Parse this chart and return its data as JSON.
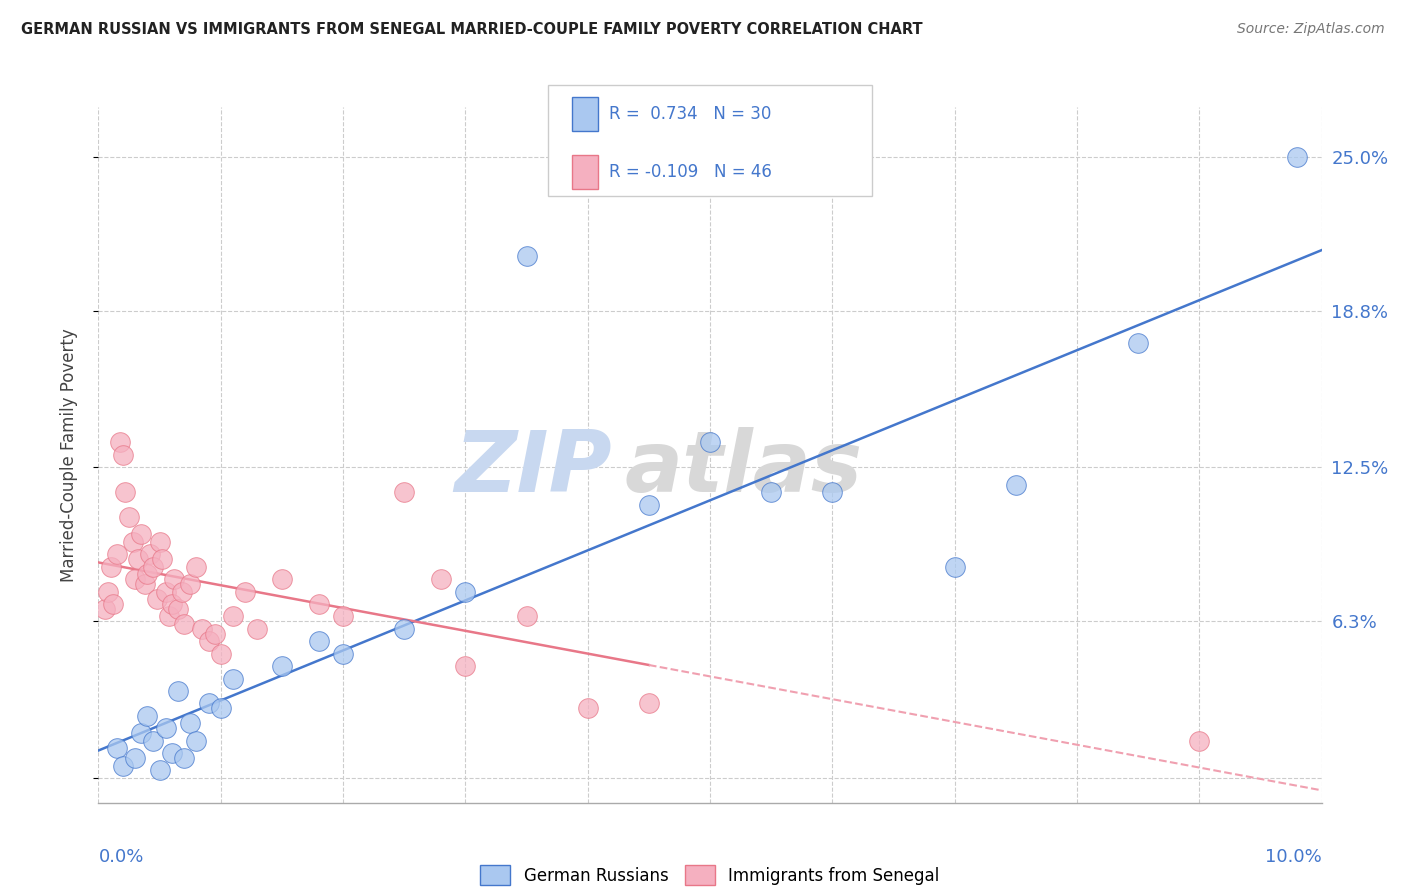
{
  "title": "GERMAN RUSSIAN VS IMMIGRANTS FROM SENEGAL MARRIED-COUPLE FAMILY POVERTY CORRELATION CHART",
  "source": "Source: ZipAtlas.com",
  "ylabel": "Married-Couple Family Poverty",
  "watermark_zip": "ZIP",
  "watermark_atlas": "atlas",
  "xlim": [
    0.0,
    10.0
  ],
  "ylim": [
    -1.0,
    27.0
  ],
  "yticks": [
    0.0,
    6.3,
    12.5,
    18.8,
    25.0
  ],
  "ytick_labels": [
    "",
    "6.3%",
    "12.5%",
    "18.8%",
    "25.0%"
  ],
  "legend": {
    "blue_R": "0.734",
    "blue_N": "30",
    "pink_R": "-0.109",
    "pink_N": "46"
  },
  "blue_scatter": [
    [
      0.15,
      1.2
    ],
    [
      0.2,
      0.5
    ],
    [
      0.3,
      0.8
    ],
    [
      0.35,
      1.8
    ],
    [
      0.4,
      2.5
    ],
    [
      0.45,
      1.5
    ],
    [
      0.5,
      0.3
    ],
    [
      0.55,
      2.0
    ],
    [
      0.6,
      1.0
    ],
    [
      0.65,
      3.5
    ],
    [
      0.7,
      0.8
    ],
    [
      0.75,
      2.2
    ],
    [
      0.8,
      1.5
    ],
    [
      0.9,
      3.0
    ],
    [
      1.0,
      2.8
    ],
    [
      1.1,
      4.0
    ],
    [
      1.5,
      4.5
    ],
    [
      1.8,
      5.5
    ],
    [
      2.0,
      5.0
    ],
    [
      2.5,
      6.0
    ],
    [
      3.0,
      7.5
    ],
    [
      3.5,
      21.0
    ],
    [
      4.5,
      11.0
    ],
    [
      5.0,
      13.5
    ],
    [
      5.5,
      11.5
    ],
    [
      6.0,
      11.5
    ],
    [
      7.0,
      8.5
    ],
    [
      7.5,
      11.8
    ],
    [
      8.5,
      17.5
    ],
    [
      9.8,
      25.0
    ]
  ],
  "pink_scatter": [
    [
      0.05,
      6.8
    ],
    [
      0.08,
      7.5
    ],
    [
      0.1,
      8.5
    ],
    [
      0.12,
      7.0
    ],
    [
      0.15,
      9.0
    ],
    [
      0.18,
      13.5
    ],
    [
      0.2,
      13.0
    ],
    [
      0.22,
      11.5
    ],
    [
      0.25,
      10.5
    ],
    [
      0.28,
      9.5
    ],
    [
      0.3,
      8.0
    ],
    [
      0.32,
      8.8
    ],
    [
      0.35,
      9.8
    ],
    [
      0.38,
      7.8
    ],
    [
      0.4,
      8.2
    ],
    [
      0.42,
      9.0
    ],
    [
      0.45,
      8.5
    ],
    [
      0.48,
      7.2
    ],
    [
      0.5,
      9.5
    ],
    [
      0.52,
      8.8
    ],
    [
      0.55,
      7.5
    ],
    [
      0.58,
      6.5
    ],
    [
      0.6,
      7.0
    ],
    [
      0.62,
      8.0
    ],
    [
      0.65,
      6.8
    ],
    [
      0.68,
      7.5
    ],
    [
      0.7,
      6.2
    ],
    [
      0.75,
      7.8
    ],
    [
      0.8,
      8.5
    ],
    [
      0.85,
      6.0
    ],
    [
      0.9,
      5.5
    ],
    [
      0.95,
      5.8
    ],
    [
      1.0,
      5.0
    ],
    [
      1.1,
      6.5
    ],
    [
      1.2,
      7.5
    ],
    [
      1.3,
      6.0
    ],
    [
      1.5,
      8.0
    ],
    [
      1.8,
      7.0
    ],
    [
      2.0,
      6.5
    ],
    [
      2.5,
      11.5
    ],
    [
      2.8,
      8.0
    ],
    [
      3.0,
      4.5
    ],
    [
      3.5,
      6.5
    ],
    [
      4.0,
      2.8
    ],
    [
      9.0,
      1.5
    ],
    [
      4.5,
      3.0
    ]
  ],
  "blue_color": "#aac8f0",
  "pink_color": "#f5b0c0",
  "blue_line_color": "#4477cc",
  "pink_line_color": "#e87788",
  "pink_dash_color": "#f0a0b0",
  "background_color": "#ffffff",
  "grid_color": "#cccccc",
  "title_color": "#222222",
  "axis_label_color": "#4477cc",
  "source_color": "#777777",
  "watermark_color_zip": "#d0dff0",
  "watermark_color_atlas": "#d8d8d8"
}
